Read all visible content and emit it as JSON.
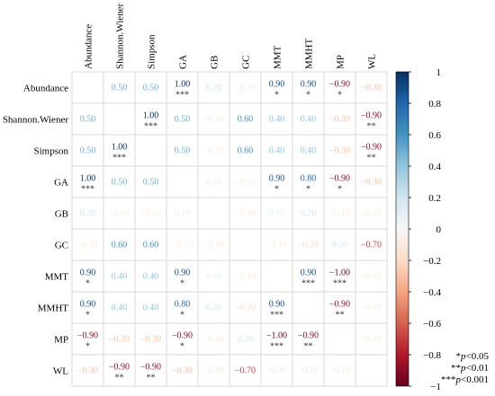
{
  "chart_data": {
    "type": "heatmap",
    "variables": [
      "Abundance",
      "Shannon.Wiener",
      "Simpson",
      "GA",
      "GB",
      "GC",
      "MMT",
      "MMHT",
      "MP",
      "WL"
    ],
    "values": [
      [
        null,
        0.5,
        0.5,
        1.0,
        0.2,
        -0.1,
        0.9,
        0.9,
        -0.9,
        -0.3
      ],
      [
        0.5,
        null,
        1.0,
        0.5,
        -0.1,
        0.6,
        0.4,
        0.4,
        -0.3,
        -0.9
      ],
      [
        0.5,
        1.0,
        null,
        0.5,
        -0.1,
        0.6,
        0.4,
        0.4,
        -0.3,
        -0.9
      ],
      [
        1.0,
        0.5,
        0.5,
        null,
        0.1,
        -0.1,
        0.9,
        0.8,
        -0.9,
        -0.3
      ],
      [
        0.2,
        -0.1,
        -0.1,
        0.1,
        null,
        -0.1,
        0.1,
        0.2,
        -0.1,
        -0.1
      ],
      [
        -0.1,
        0.6,
        0.6,
        -0.1,
        -0.1,
        null,
        -0.1,
        -0.2,
        0.2,
        -0.7
      ],
      [
        0.9,
        0.4,
        0.4,
        0.9,
        0.1,
        -0.1,
        null,
        0.9,
        -1.0,
        -0.1
      ],
      [
        0.9,
        0.4,
        0.4,
        0.8,
        0.2,
        -0.2,
        0.9,
        null,
        -0.9,
        -0.1
      ],
      [
        -0.9,
        -0.3,
        -0.3,
        -0.9,
        -0.1,
        0.2,
        -1.0,
        -0.9,
        null,
        -0.1
      ],
      [
        -0.3,
        -0.9,
        -0.9,
        -0.3,
        -0.1,
        -0.7,
        -0.1,
        -0.1,
        -0.1,
        null
      ]
    ],
    "significance": [
      [
        "",
        "",
        "",
        "***",
        "",
        "",
        "*",
        "*",
        "*",
        ""
      ],
      [
        "",
        "",
        "***",
        "",
        "",
        "",
        "",
        "",
        "",
        "**"
      ],
      [
        "",
        "***",
        "",
        "",
        "",
        "",
        "",
        "",
        "",
        "**"
      ],
      [
        "***",
        "",
        "",
        "",
        "",
        "",
        "*",
        "*",
        "*",
        ""
      ],
      [
        "",
        "",
        "",
        "",
        "",
        "",
        "",
        "",
        "",
        ""
      ],
      [
        "",
        "",
        "",
        "",
        "",
        "",
        "",
        "",
        "",
        ""
      ],
      [
        "*",
        "",
        "",
        "*",
        "",
        "",
        "",
        "***",
        "***",
        ""
      ],
      [
        "*",
        "",
        "",
        "*",
        "",
        "",
        "***",
        "",
        "**",
        ""
      ],
      [
        "*",
        "",
        "",
        "*",
        "",
        "",
        "***",
        "**",
        "",
        ""
      ],
      [
        "",
        "**",
        "**",
        "",
        "",
        "",
        "",
        "",
        "",
        ""
      ]
    ],
    "colorbar": {
      "ticks": [
        "1",
        "0.8",
        "0.6",
        "0.4",
        "0.2",
        "0",
        "−0.2",
        "−0.4",
        "−0.6",
        "−0.8",
        "−1"
      ],
      "range": [
        -1,
        1
      ],
      "colors": {
        "negative": "#67001f",
        "neutral": "#f7f7f7",
        "positive": "#053061"
      }
    },
    "legend": [
      {
        "stars": "*",
        "label": "p<0.05"
      },
      {
        "stars": "**",
        "label": "p<0.01"
      },
      {
        "stars": "***",
        "label": "p<0.001"
      }
    ],
    "grid": true
  }
}
